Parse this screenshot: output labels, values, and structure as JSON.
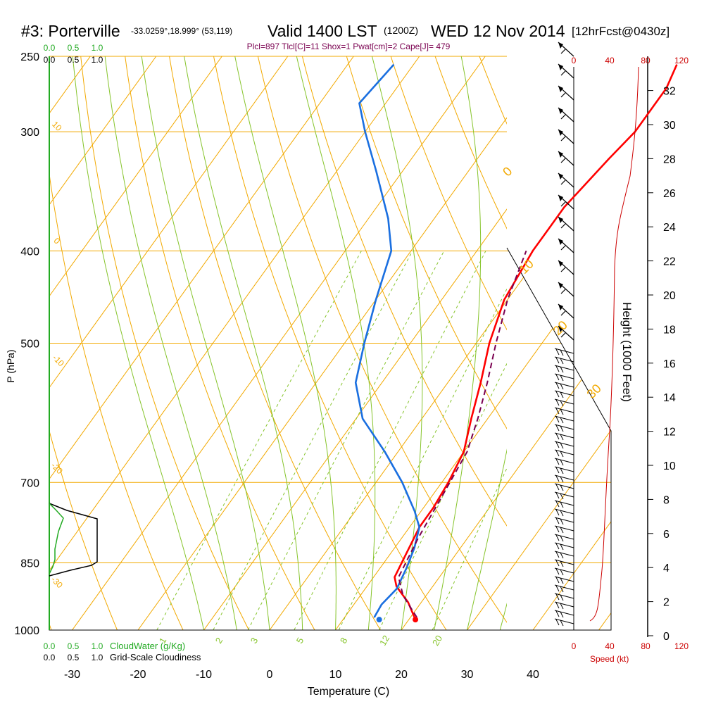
{
  "header": {
    "station": "#3: Porterville",
    "coords": "-33.0259°,18.999° (53,119)",
    "valid": "Valid 1400 LST",
    "zulu": "(1200Z)",
    "date": "WED 12 Nov 2014",
    "forecast": "[12hrFcst@0430z]",
    "indices": "Plcl=897 Tlcl[C]=11 Shox=1 Pwat[cm]=2 Cape[J]= 479"
  },
  "colors": {
    "isotherm": "#f2a900",
    "dry_adiabat": "#f2a900",
    "moist_adiabat": "#86c42b",
    "mixing_ratio": "#86c42b",
    "temperature": "#ff0000",
    "dewpoint": "#1a6fe0",
    "parcel": "#7a0050",
    "cloudwater": "#22aa22",
    "cloudiness": "#000000",
    "speed": "#cc0000",
    "frame": "#000000"
  },
  "chart_data": {
    "type": "line",
    "xlabel": "Temperature (C)",
    "ylabel": "P (hPa)",
    "right_ylabel": "Height (1000 Feet)",
    "x_ticks": [
      "-30",
      "-20",
      "-10",
      "0",
      "10",
      "20",
      "30",
      "40"
    ],
    "p_ticks": [
      "250",
      "300",
      "400",
      "500",
      "700",
      "850",
      "1000"
    ],
    "height_ticks": [
      "0",
      "2",
      "4",
      "6",
      "8",
      "10",
      "12",
      "14",
      "16",
      "18",
      "20",
      "22",
      "24",
      "26",
      "28",
      "30",
      "32"
    ],
    "series": [
      {
        "key": "temperature",
        "points": [
          [
            21,
            975
          ],
          [
            18,
            935
          ],
          [
            14.5,
            900
          ],
          [
            13.2,
            880
          ],
          [
            11.5,
            780
          ],
          [
            11.5,
            745
          ],
          [
            11,
            700
          ],
          [
            10,
            650
          ],
          [
            7.5,
            600
          ],
          [
            5,
            550
          ],
          [
            2,
            500
          ],
          [
            -0.5,
            450
          ],
          [
            -1.5,
            400
          ],
          [
            -1.5,
            380
          ],
          [
            -1.5,
            360
          ],
          [
            0,
            320
          ],
          [
            1,
            300
          ],
          [
            1,
            270
          ],
          [
            0,
            255
          ]
        ]
      },
      {
        "key": "dewpoint",
        "points": [
          [
            14.5,
            970
          ],
          [
            14.2,
            940
          ],
          [
            14.8,
            905
          ],
          [
            14,
            860
          ],
          [
            13,
            820
          ],
          [
            11.5,
            780
          ],
          [
            9,
            750
          ],
          [
            4,
            700
          ],
          [
            -2,
            650
          ],
          [
            -9,
            600
          ],
          [
            -14,
            550
          ],
          [
            -17,
            500
          ],
          [
            -20,
            450
          ],
          [
            -23,
            400
          ],
          [
            -27,
            370
          ],
          [
            -34,
            330
          ],
          [
            -40,
            300
          ],
          [
            -44,
            280
          ],
          [
            -43,
            255
          ]
        ]
      },
      {
        "key": "parcel",
        "dashed": true,
        "points": [
          [
            21,
            970
          ],
          [
            16.5,
            920
          ],
          [
            13.8,
            880
          ],
          [
            12.5,
            800
          ],
          [
            11.5,
            720
          ],
          [
            10.5,
            650
          ],
          [
            8.5,
            600
          ],
          [
            6,
            550
          ],
          [
            3,
            500
          ],
          [
            0,
            450
          ],
          [
            -2.5,
            400
          ]
        ]
      }
    ],
    "surface_markers": [
      {
        "key": "temperature",
        "value": [
          21,
          975
        ]
      },
      {
        "key": "dewpoint",
        "value": [
          15.5,
          975
        ]
      }
    ],
    "isotherm_labels": [
      "-10",
      "0",
      "10",
      "20",
      "30"
    ],
    "dry_adiabat_labels": [
      "10",
      "0",
      "-10",
      "-20",
      "-30"
    ],
    "mixing_ratio_labels": [
      "1",
      "2",
      "3",
      "5",
      "8",
      "12",
      "20"
    ],
    "wind_speed_ticks": [
      "0",
      "40",
      "80",
      "120"
    ],
    "wind_speed_label": "Speed (kt)",
    "cloud_legend": {
      "cloudwater_ticks": [
        "0.0",
        "0.5",
        "1.0"
      ],
      "cloudwater_label": "CloudWater (g/Kg)",
      "cloudiness_ticks": [
        "0.0",
        "0.5",
        "1.0"
      ],
      "cloudiness_label": "Grid-Scale Cloudiness"
    },
    "grid": true
  }
}
